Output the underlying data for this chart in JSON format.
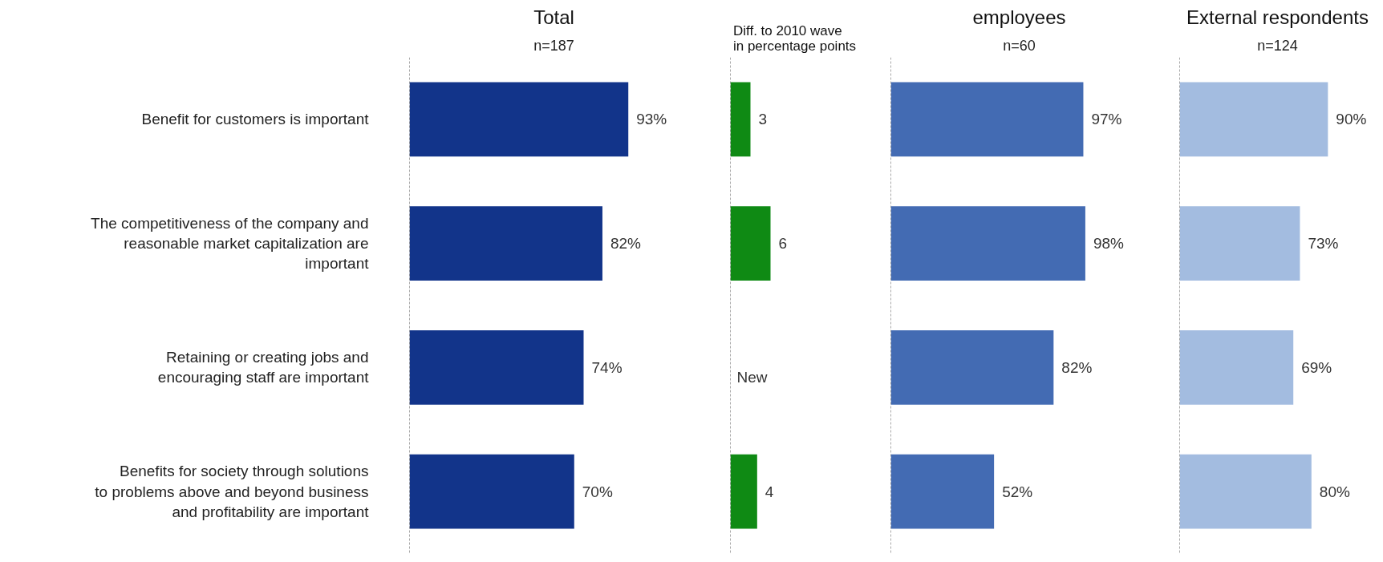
{
  "chart_data": [
    {
      "type": "bar",
      "orientation": "horizontal",
      "title": "Total",
      "subtitle": "n=187",
      "categories": [
        "Benefit for customers is important",
        "The competitiveness of the company and reasonable market capitalization are important",
        "Retaining or creating jobs and encouraging staff are important",
        "Benefits for society through solutions to problems above and beyond business and profitability are important"
      ],
      "values": [
        93,
        82,
        74,
        70
      ],
      "value_labels": [
        "93%",
        "82%",
        "74%",
        "70%"
      ],
      "color": "#12348a",
      "tick_labels": "y"
    },
    {
      "type": "bar",
      "orientation": "horizontal",
      "title": "Diff. to 2010 wave in percentage points",
      "categories": [
        "Benefit for customers is important",
        "The competitiveness of the company and reasonable market capitalization are important",
        "Retaining or creating jobs and encouraging staff are important",
        "Benefits for society through solutions to problems above and beyond business and profitability are important"
      ],
      "values": [
        3,
        6,
        null,
        4
      ],
      "value_labels": [
        "3",
        "6",
        "New",
        "4"
      ],
      "color": "#0f8a14",
      "tick_labels": false
    },
    {
      "type": "bar",
      "orientation": "horizontal",
      "title": "employees",
      "subtitle": "n=60",
      "categories": [
        "Benefit for customers is important",
        "The competitiveness of the company and reasonable market capitalization are important",
        "Retaining or creating jobs and encouraging staff are important",
        "Benefits for society through solutions to problems above and beyond business and profitability are important"
      ],
      "values": [
        97,
        98,
        82,
        52
      ],
      "value_labels": [
        "97%",
        "98%",
        "82%",
        "52%"
      ],
      "color": "#436bb3",
      "tick_labels": false
    },
    {
      "type": "bar",
      "orientation": "horizontal",
      "title": "External respondents",
      "subtitle": "n=124",
      "categories": [
        "Benefit for customers is important",
        "The competitiveness of the company and reasonable market capitalization are important",
        "Retaining or creating jobs and encouraging staff are important",
        "Benefits for society through solutions to problems above and beyond business and profitability are important"
      ],
      "values": [
        90,
        73,
        69,
        80
      ],
      "value_labels": [
        "90%",
        "73%",
        "69%",
        "80%"
      ],
      "color": "#a3bce0",
      "tick_labels": false
    }
  ]
}
